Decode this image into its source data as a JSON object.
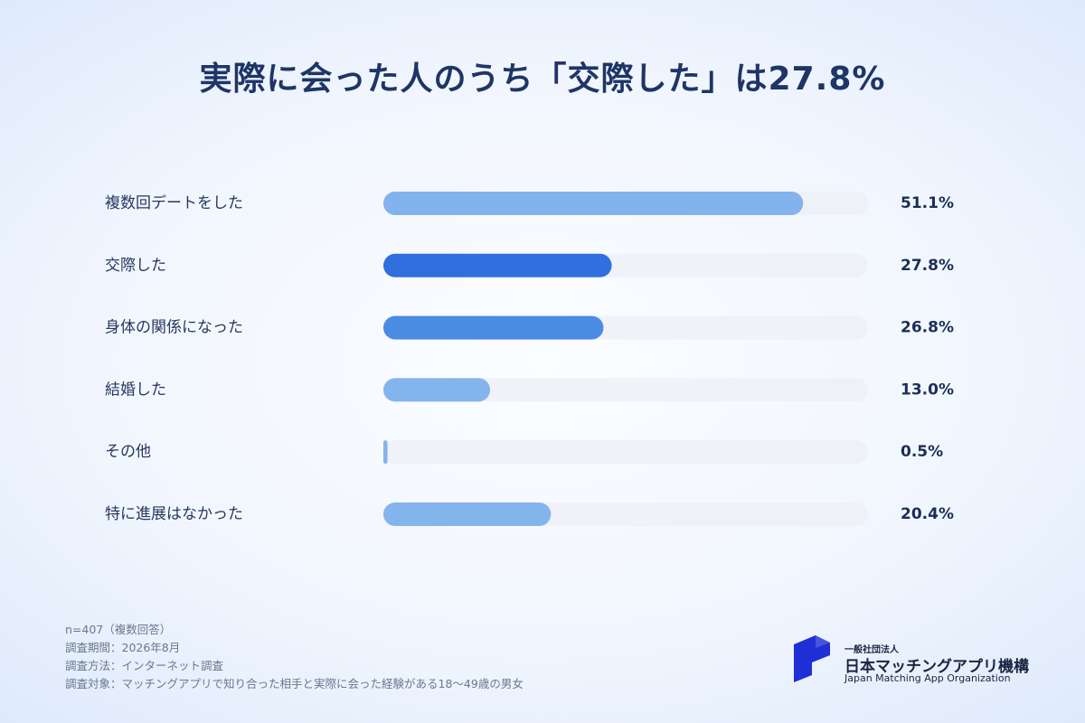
{
  "title": "実際に会った人のうち「交際した」は27.8%",
  "chart_data": {
    "type": "bar",
    "orientation": "horizontal",
    "categories": [
      "複数回デートをした",
      "交際した",
      "身体の関係になった",
      "結婚した",
      "その他",
      "特に進展はなかった"
    ],
    "values": [
      51.1,
      27.8,
      26.8,
      13.0,
      0.5,
      20.4
    ],
    "value_labels": [
      "51.1%",
      "27.8%",
      "26.8%",
      "13.0%",
      "0.5%",
      "20.4%"
    ],
    "xlim": [
      0,
      59
    ],
    "unit": "%",
    "colors": [
      "#83b3ec",
      "#2f6fde",
      "#4a8be3",
      "#84b4ec",
      "#84b4ec",
      "#84b4ec"
    ],
    "track_color": "#eceff5",
    "grid": false
  },
  "notes": [
    "n=407（複数回答）",
    "調査期間：2026年8月",
    "調査方法：インターネット調査",
    "調査対象：マッチングアプリで知り合った相手と実際に会った経験がある18〜49歳の男女"
  ],
  "logo": {
    "org_type": "一般社団法人",
    "name_ja": "日本マッチングアプリ機構",
    "name_en": "Japan Matching App Organization",
    "color": "#1f2fd6"
  }
}
